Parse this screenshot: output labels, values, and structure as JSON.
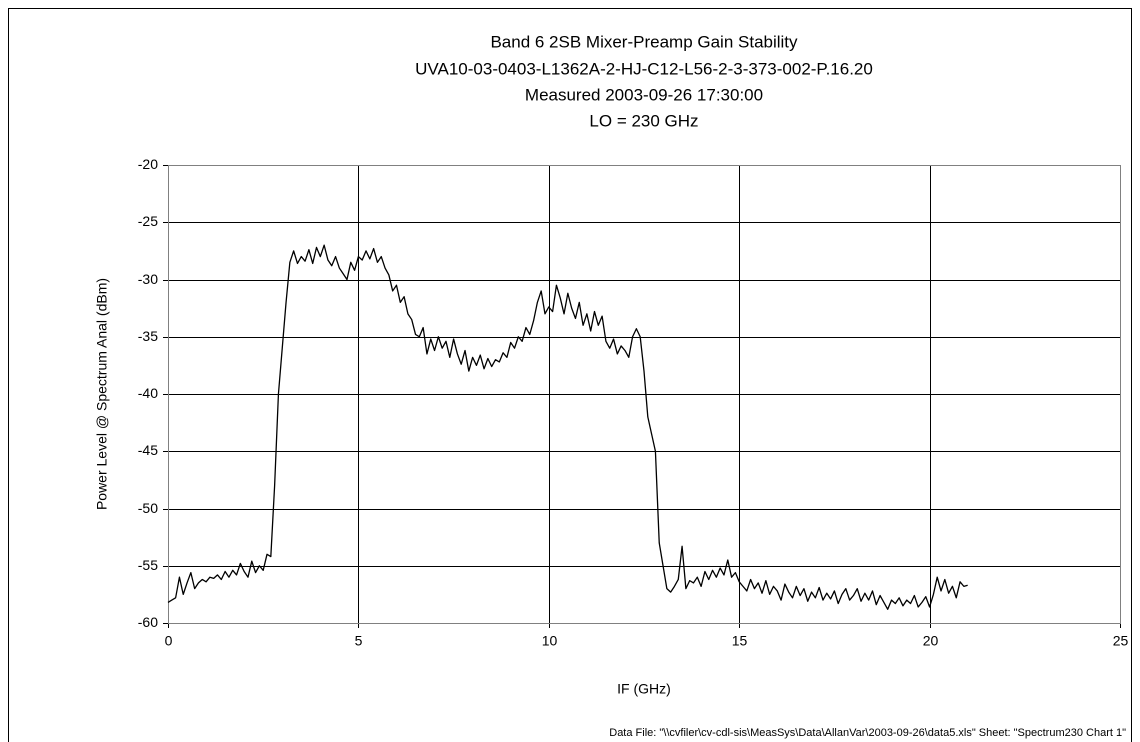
{
  "chart_data": {
    "type": "line",
    "title": "Band 6 2SB Mixer-Preamp Gain Stability",
    "subtitle": [
      "UVA10-03-0403-L1362A-2-HJ-C12-L56-2-3-373-002-P.16.20",
      "Measured 2003-09-26 17:30:00",
      "LO = 230 GHz"
    ],
    "x_label": "IF (GHz)",
    "y_label": "Power Level @ Spectrum Anal (dBm)",
    "annotation": "Data File: \"\\\\cvfiler\\cv-cdl-sis\\MeasSys\\Data\\AllanVar\\2003-09-26\\data5.xls\"  Sheet: \"Spectrum230 Chart 1\"",
    "color": "#000000",
    "grid": true,
    "xlim": [
      0,
      25
    ],
    "xticks": [
      0,
      5,
      10,
      15,
      20,
      25
    ],
    "ylim": [
      -60,
      -20
    ],
    "yticks": [
      -60,
      -55,
      -50,
      -45,
      -40,
      -35,
      -30,
      -25,
      -20
    ],
    "x": [
      0,
      0.1,
      0.2,
      0.3,
      0.4,
      0.5,
      0.6,
      0.7,
      0.8,
      0.9,
      1,
      1.1,
      1.2,
      1.3,
      1.4,
      1.5,
      1.6,
      1.7,
      1.8,
      1.9,
      2,
      2.1,
      2.2,
      2.3,
      2.4,
      2.5,
      2.6,
      2.7,
      2.8,
      2.9,
      3,
      3.1,
      3.2,
      3.3,
      3.4,
      3.5,
      3.6,
      3.7,
      3.8,
      3.9,
      4,
      4.1,
      4.2,
      4.3,
      4.4,
      4.5,
      4.6,
      4.7,
      4.8,
      4.9,
      5,
      5.1,
      5.2,
      5.3,
      5.4,
      5.5,
      5.6,
      5.7,
      5.8,
      5.9,
      6,
      6.1,
      6.2,
      6.3,
      6.4,
      6.5,
      6.6,
      6.7,
      6.8,
      6.9,
      7,
      7.1,
      7.2,
      7.3,
      7.4,
      7.5,
      7.6,
      7.7,
      7.8,
      7.9,
      8,
      8.1,
      8.2,
      8.3,
      8.4,
      8.5,
      8.6,
      8.7,
      8.8,
      8.9,
      9,
      9.1,
      9.2,
      9.3,
      9.4,
      9.5,
      9.6,
      9.7,
      9.8,
      9.9,
      10,
      10.1,
      10.2,
      10.3,
      10.4,
      10.5,
      10.6,
      10.7,
      10.8,
      10.9,
      11,
      11.1,
      11.2,
      11.3,
      11.4,
      11.5,
      11.6,
      11.7,
      11.8,
      11.9,
      12,
      12.1,
      12.2,
      12.3,
      12.4,
      12.5,
      12.6,
      12.7,
      12.8,
      12.9,
      13,
      13.1,
      13.2,
      13.3,
      13.4,
      13.5,
      13.6,
      13.7,
      13.8,
      13.9,
      14,
      14.1,
      14.2,
      14.3,
      14.4,
      14.5,
      14.6,
      14.7,
      14.8,
      14.9,
      15,
      15.1,
      15.2,
      15.3,
      15.4,
      15.5,
      15.6,
      15.7,
      15.8,
      15.9,
      16,
      16.1,
      16.2,
      16.3,
      16.4,
      16.5,
      16.6,
      16.7,
      16.8,
      16.9,
      17,
      17.1,
      17.2,
      17.3,
      17.4,
      17.5,
      17.6,
      17.7,
      17.8,
      17.9,
      18,
      18.1,
      18.2,
      18.3,
      18.4,
      18.5,
      18.6,
      18.7,
      18.8,
      18.9,
      19,
      19.1,
      19.2,
      19.3,
      19.4,
      19.5,
      19.6,
      19.7,
      19.8,
      19.9,
      20,
      20.1,
      20.2,
      20.3,
      20.4,
      20.5,
      20.6,
      20.7,
      20.8,
      20.9,
      21
    ],
    "values": [
      -58.2,
      -58,
      -57.8,
      -56,
      -57.5,
      -56.5,
      -55.6,
      -57,
      -56.5,
      -56.2,
      -56.4,
      -56,
      -56.1,
      -55.8,
      -56.2,
      -55.5,
      -56,
      -55.4,
      -55.8,
      -54.8,
      -55.5,
      -56,
      -54.6,
      -55.6,
      -55,
      -55.4,
      -54,
      -54.2,
      -48,
      -40,
      -36,
      -32,
      -28.5,
      -27.5,
      -28.6,
      -28,
      -28.4,
      -27.4,
      -28.6,
      -27.2,
      -28,
      -27,
      -28.3,
      -28.8,
      -28,
      -29,
      -29.5,
      -30,
      -28.5,
      -29.2,
      -28,
      -28.3,
      -27.5,
      -28.2,
      -27.3,
      -28.5,
      -28,
      -29,
      -29.6,
      -31,
      -30.5,
      -32,
      -31.5,
      -33,
      -33.5,
      -34.8,
      -35,
      -34.2,
      -36.5,
      -35.2,
      -36.2,
      -35,
      -36,
      -35.4,
      -36.8,
      -35.2,
      -36.5,
      -37.4,
      -36.2,
      -38,
      -36.8,
      -37.5,
      -36.6,
      -37.8,
      -36.9,
      -37.6,
      -37,
      -37.2,
      -36.4,
      -36.8,
      -35.5,
      -36,
      -35,
      -35.4,
      -34.2,
      -34.8,
      -33.6,
      -32,
      -31,
      -33,
      -32.4,
      -32.8,
      -30.5,
      -31.6,
      -33,
      -31.2,
      -32.5,
      -33.4,
      -32,
      -34,
      -33,
      -34.5,
      -32.8,
      -34,
      -33.2,
      -35.4,
      -36,
      -35.2,
      -36.5,
      -35.8,
      -36.2,
      -36.8,
      -35,
      -34.3,
      -35,
      -38,
      -42,
      -43.5,
      -45,
      -53,
      -55,
      -57,
      -57.3,
      -56.8,
      -56.2,
      -53.3,
      -57,
      -56.3,
      -56.5,
      -56,
      -56.8,
      -55.5,
      -56.2,
      -55.4,
      -56,
      -55.2,
      -55.8,
      -54.5,
      -56,
      -55.6,
      -56.4,
      -56.8,
      -57.2,
      -56.2,
      -57,
      -56.5,
      -57.4,
      -56.3,
      -57.5,
      -56.8,
      -57.2,
      -58,
      -56.6,
      -57.3,
      -57.8,
      -56.8,
      -57.6,
      -57,
      -58.1,
      -57.3,
      -57.8,
      -56.9,
      -58,
      -57.4,
      -57.9,
      -57.2,
      -58.3,
      -57.5,
      -57,
      -58,
      -57.6,
      -57,
      -58.1,
      -57.4,
      -58,
      -57.2,
      -58.4,
      -57.6,
      -58.2,
      -58.8,
      -58,
      -58.3,
      -57.8,
      -58.5,
      -58,
      -58.3,
      -57.6,
      -58.6,
      -58.2,
      -57.7,
      -58.6,
      -57.5,
      -56,
      -57.2,
      -56.2,
      -57.4,
      -56.8,
      -57.8,
      -56.4,
      -56.8,
      -56.7
    ]
  }
}
